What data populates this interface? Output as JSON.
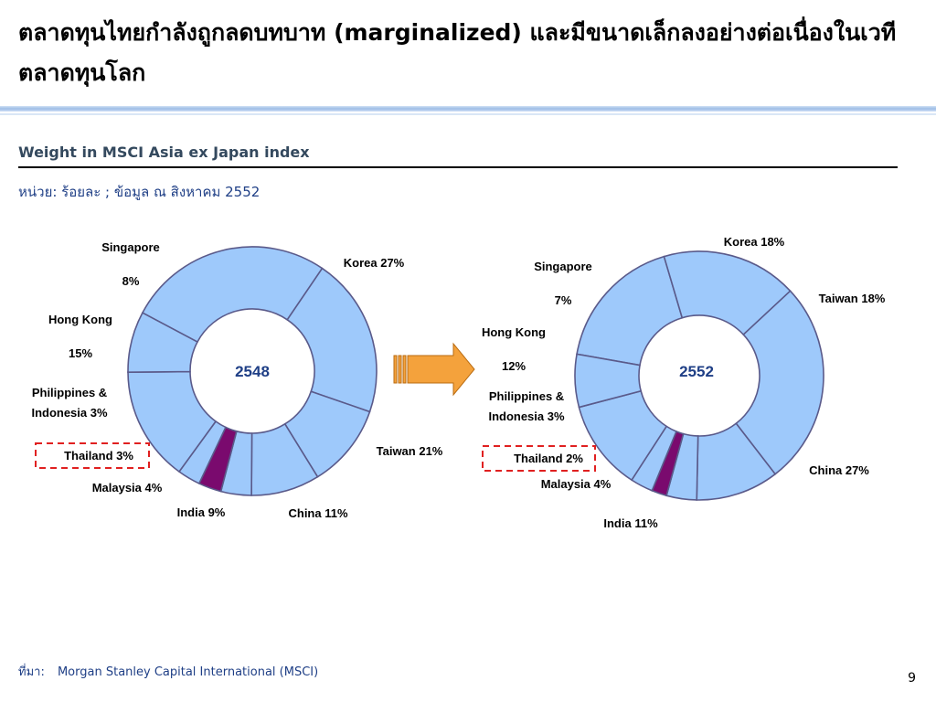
{
  "slide": {
    "title": "ตลาดทุนไทยกำลังถูกลดบทบาท (marginalized) และมีขนาดเล็กลงอย่างต่อเนื่องในเวทีตลาดทุนโลก",
    "chart_heading": "Weight in MSCI Asia ex Japan index",
    "unit_note": "หน่วย: ร้อยละ ; ข้อมูล ณ สิงหาคม 2552",
    "source_label": "ที่มา:",
    "source_text": "Morgan Stanley Capital International (MSCI)",
    "page_number": "9"
  },
  "colors": {
    "slice_default": "#9ec9fb",
    "slice_highlight": "#7a0a6e",
    "slice_stroke": "#5a5a8a",
    "arrow_fill": "#f4a23c",
    "highlight_box": "#e02020"
  },
  "chart_data": [
    {
      "type": "pie",
      "center_label": "2548",
      "slices": [
        {
          "name": "Korea",
          "value": 27,
          "label": "Korea 27%"
        },
        {
          "name": "Taiwan",
          "value": 21,
          "label": "Taiwan 21%"
        },
        {
          "name": "China",
          "value": 11,
          "label": "China 11%"
        },
        {
          "name": "India",
          "value": 9,
          "label": "India 9%"
        },
        {
          "name": "Malaysia",
          "value": 4,
          "label": "Malaysia 4%"
        },
        {
          "name": "Thailand",
          "value": 3,
          "label": "Thailand 3%",
          "highlight": true
        },
        {
          "name": "Philippines & Indonesia",
          "value": 3,
          "label": [
            "Philippines &",
            "Indonesia 3%"
          ]
        },
        {
          "name": "Hong Kong",
          "value": 15,
          "label": [
            "Hong Kong",
            "15%"
          ]
        },
        {
          "name": "Singapore",
          "value": 8,
          "label": [
            "Singapore",
            "8%"
          ]
        }
      ]
    },
    {
      "type": "pie",
      "center_label": "2552",
      "slices": [
        {
          "name": "Korea",
          "value": 18,
          "label": "Korea 18%"
        },
        {
          "name": "Taiwan",
          "value": 18,
          "label": "Taiwan 18%"
        },
        {
          "name": "China",
          "value": 27,
          "label": "China 27%"
        },
        {
          "name": "India",
          "value": 11,
          "label": "India 11%"
        },
        {
          "name": "Malaysia",
          "value": 4,
          "label": "Malaysia 4%"
        },
        {
          "name": "Thailand",
          "value": 2,
          "label": "Thailand 2%",
          "highlight": true
        },
        {
          "name": "Philippines & Indonesia",
          "value": 3,
          "label": [
            "Philippines &",
            "Indonesia 3%"
          ]
        },
        {
          "name": "Hong Kong",
          "value": 12,
          "label": [
            "Hong Kong",
            "12%"
          ]
        },
        {
          "name": "Singapore",
          "value": 7,
          "label": [
            "Singapore",
            "7%"
          ]
        }
      ]
    }
  ]
}
